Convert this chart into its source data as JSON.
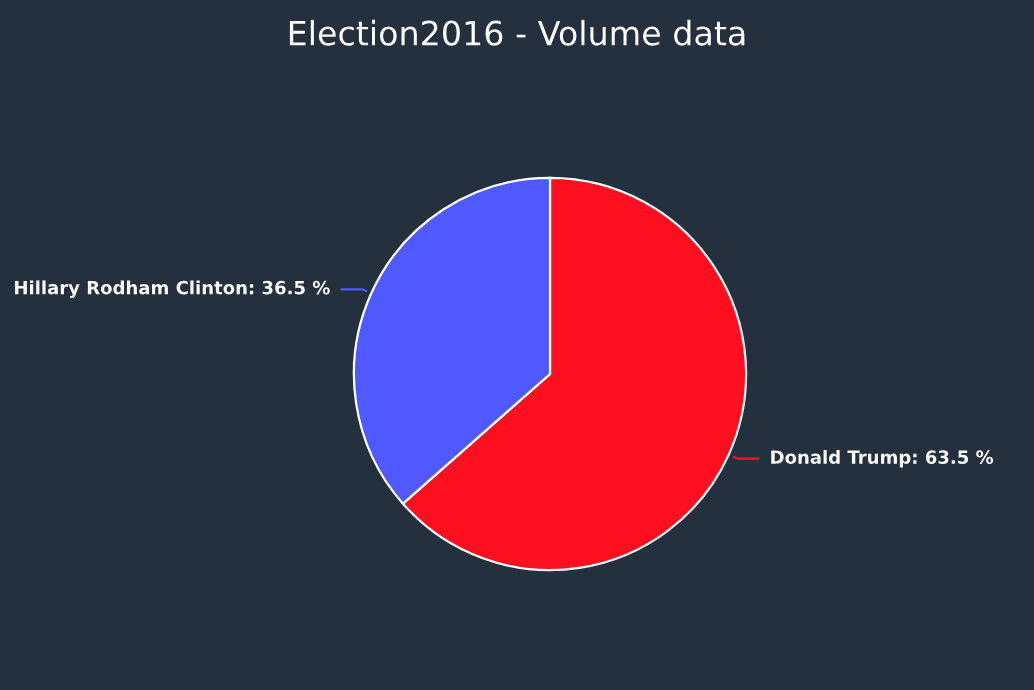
{
  "chart_data": {
    "type": "pie",
    "title": "Election2016 - Volume data",
    "categories": [
      "Donald Trump",
      "Hillary Rodham Clinton"
    ],
    "values": [
      63.5,
      36.5
    ],
    "value_labels": [
      "63.5 %",
      "36.5 %"
    ],
    "colors": [
      "#ff1020",
      "#5059ff"
    ],
    "legend": false
  }
}
